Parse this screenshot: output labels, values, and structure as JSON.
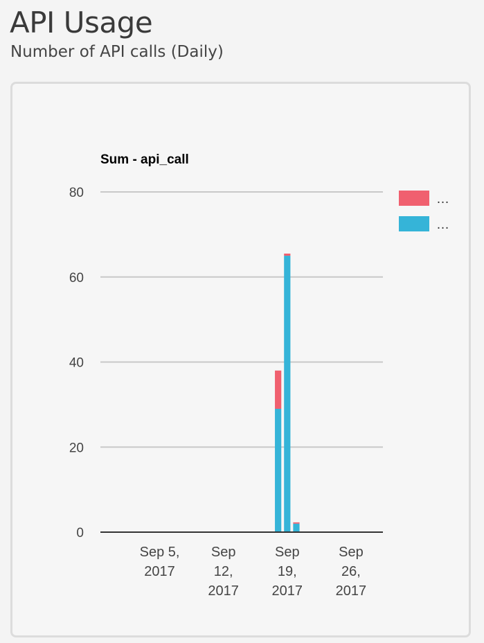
{
  "page": {
    "title": "API Usage",
    "subtitle": "Number of API calls (Daily)"
  },
  "chart_data": {
    "type": "bar",
    "stacked": true,
    "title": "Sum - api_call",
    "xlabel": "",
    "ylabel": "",
    "ylim": [
      0,
      80
    ],
    "y_ticks": [
      0,
      20,
      40,
      60,
      80
    ],
    "grid": true,
    "legend_position": "right",
    "x_ticks": [
      {
        "date": "2017-09-05",
        "label": [
          "Sep 5,",
          "2017"
        ]
      },
      {
        "date": "2017-09-12",
        "label": [
          "Sep",
          "12,",
          "2017"
        ]
      },
      {
        "date": "2017-09-19",
        "label": [
          "Sep",
          "19,",
          "2017"
        ]
      },
      {
        "date": "2017-09-26",
        "label": [
          "Sep",
          "26,",
          "2017"
        ]
      }
    ],
    "x_range": [
      "2017-08-30",
      "2017-09-30"
    ],
    "x": [
      "2017-09-18",
      "2017-09-19",
      "2017-09-20"
    ],
    "series": [
      {
        "name": "…",
        "color": "#f0606f",
        "values": [
          9,
          0.5,
          0.3
        ]
      },
      {
        "name": "…",
        "color": "#35b4d8",
        "values": [
          29,
          65,
          2
        ]
      }
    ]
  }
}
